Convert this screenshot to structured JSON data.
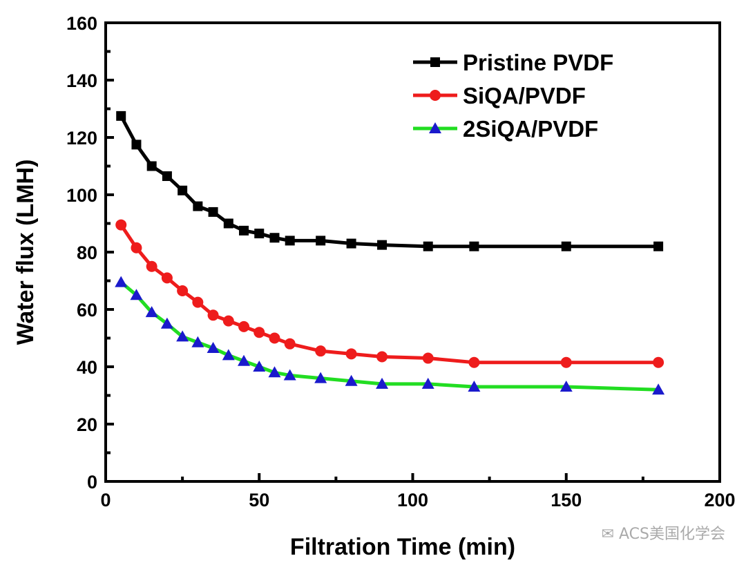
{
  "chart_data": {
    "type": "line",
    "title": "",
    "xlabel": "Filtration Time (min)",
    "ylabel": "Water  flux (LMH)",
    "xlim": [
      0,
      200
    ],
    "ylim": [
      0,
      160
    ],
    "xticks": [
      0,
      50,
      100,
      150,
      200
    ],
    "yticks": [
      0,
      20,
      40,
      60,
      80,
      100,
      120,
      140,
      160
    ],
    "grid": false,
    "legend_position": "top-right",
    "x": [
      5,
      10,
      15,
      20,
      25,
      30,
      35,
      40,
      45,
      50,
      55,
      60,
      70,
      80,
      90,
      105,
      120,
      150,
      180
    ],
    "series": [
      {
        "name": "Pristine PVDF",
        "color": "#000000",
        "marker": "square",
        "values": [
          127.5,
          117.5,
          110,
          106.5,
          101.5,
          96,
          94,
          90,
          87.5,
          86.5,
          85,
          84,
          84,
          83,
          82.5,
          82,
          82,
          82,
          82
        ]
      },
      {
        "name": "SiQA/PVDF",
        "color": "#ee1c1c",
        "marker": "circle",
        "values": [
          89.5,
          81.5,
          75,
          71,
          66.5,
          62.5,
          58,
          56,
          54,
          52,
          50,
          48,
          45.5,
          44.5,
          43.5,
          43,
          41.5,
          41.5,
          41.5
        ]
      },
      {
        "name": "2SiQA/PVDF",
        "color": "#22dd22",
        "marker_color": "#1a1acc",
        "marker": "triangle",
        "values": [
          69.5,
          65,
          59,
          55,
          50.5,
          48.5,
          46.5,
          44,
          42,
          40,
          38,
          37,
          36,
          35,
          34,
          34,
          33,
          33,
          32
        ]
      }
    ]
  },
  "watermark": "ACS美国化学会"
}
